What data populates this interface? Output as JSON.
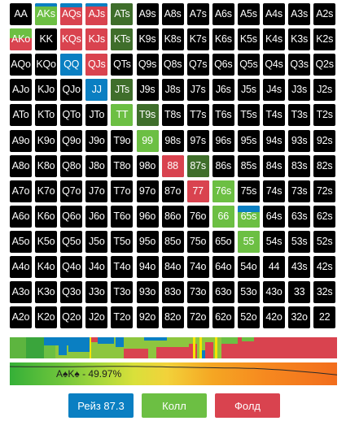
{
  "colors": {
    "raise": "#0a7fc2",
    "call": "#6cbf43",
    "call_dark": "#3f6e2b",
    "fold": "#d9434f",
    "empty": "#000000"
  },
  "grid": {
    "rows": [
      [
        {
          "l": "AA",
          "f": []
        },
        {
          "l": "AKs",
          "f": [
            [
              "raise",
              0.15
            ],
            [
              "call",
              0.85
            ]
          ]
        },
        {
          "l": "AQs",
          "f": [
            [
              "raise",
              0.18
            ],
            [
              "fold",
              0.82
            ]
          ]
        },
        {
          "l": "AJs",
          "f": [
            [
              "raise",
              0.15
            ],
            [
              "fold",
              0.85
            ]
          ]
        },
        {
          "l": "ATs",
          "f": [
            [
              "call_dark",
              1
            ]
          ]
        },
        {
          "l": "A9s",
          "f": []
        },
        {
          "l": "A8s",
          "f": []
        },
        {
          "l": "A7s",
          "f": []
        },
        {
          "l": "A6s",
          "f": []
        },
        {
          "l": "A5s",
          "f": []
        },
        {
          "l": "A4s",
          "f": []
        },
        {
          "l": "A3s",
          "f": []
        },
        {
          "l": "A2s",
          "f": []
        }
      ],
      [
        {
          "l": "AKo",
          "f": [
            [
              "call",
              0.45
            ],
            [
              "fold",
              0.55
            ]
          ]
        },
        {
          "l": "KK",
          "f": []
        },
        {
          "l": "KQs",
          "f": [
            [
              "fold",
              1
            ]
          ]
        },
        {
          "l": "KJs",
          "f": [
            [
              "fold",
              1
            ]
          ]
        },
        {
          "l": "KTs",
          "f": [
            [
              "call_dark",
              1
            ]
          ]
        },
        {
          "l": "K9s",
          "f": []
        },
        {
          "l": "K8s",
          "f": []
        },
        {
          "l": "K7s",
          "f": []
        },
        {
          "l": "K6s",
          "f": []
        },
        {
          "l": "K5s",
          "f": []
        },
        {
          "l": "K4s",
          "f": []
        },
        {
          "l": "K3s",
          "f": []
        },
        {
          "l": "K2s",
          "f": []
        }
      ],
      [
        {
          "l": "AQo",
          "f": []
        },
        {
          "l": "KQo",
          "f": []
        },
        {
          "l": "QQ",
          "f": [
            [
              "raise",
              1
            ]
          ]
        },
        {
          "l": "QJs",
          "f": [
            [
              "fold",
              1
            ]
          ]
        },
        {
          "l": "QTs",
          "f": []
        },
        {
          "l": "Q9s",
          "f": []
        },
        {
          "l": "Q8s",
          "f": []
        },
        {
          "l": "Q7s",
          "f": []
        },
        {
          "l": "Q6s",
          "f": []
        },
        {
          "l": "Q5s",
          "f": []
        },
        {
          "l": "Q4s",
          "f": []
        },
        {
          "l": "Q3s",
          "f": []
        },
        {
          "l": "Q2s",
          "f": []
        }
      ],
      [
        {
          "l": "AJo",
          "f": []
        },
        {
          "l": "KJo",
          "f": []
        },
        {
          "l": "QJo",
          "f": []
        },
        {
          "l": "JJ",
          "f": [
            [
              "raise",
              1
            ]
          ]
        },
        {
          "l": "JTs",
          "f": [
            [
              "call_dark",
              1
            ]
          ]
        },
        {
          "l": "J9s",
          "f": []
        },
        {
          "l": "J8s",
          "f": []
        },
        {
          "l": "J7s",
          "f": []
        },
        {
          "l": "J6s",
          "f": []
        },
        {
          "l": "J5s",
          "f": []
        },
        {
          "l": "J4s",
          "f": []
        },
        {
          "l": "J3s",
          "f": []
        },
        {
          "l": "J2s",
          "f": []
        }
      ],
      [
        {
          "l": "ATo",
          "f": []
        },
        {
          "l": "KTo",
          "f": []
        },
        {
          "l": "QTo",
          "f": []
        },
        {
          "l": "JTo",
          "f": []
        },
        {
          "l": "TT",
          "f": [
            [
              "call",
              1
            ]
          ]
        },
        {
          "l": "T9s",
          "f": [
            [
              "call_dark",
              1
            ]
          ]
        },
        {
          "l": "T8s",
          "f": []
        },
        {
          "l": "T7s",
          "f": []
        },
        {
          "l": "T6s",
          "f": []
        },
        {
          "l": "T5s",
          "f": []
        },
        {
          "l": "T4s",
          "f": []
        },
        {
          "l": "T3s",
          "f": []
        },
        {
          "l": "T2s",
          "f": []
        }
      ],
      [
        {
          "l": "A9o",
          "f": []
        },
        {
          "l": "K9o",
          "f": []
        },
        {
          "l": "Q9o",
          "f": []
        },
        {
          "l": "J9o",
          "f": []
        },
        {
          "l": "T9o",
          "f": []
        },
        {
          "l": "99",
          "f": [
            [
              "call",
              1
            ]
          ]
        },
        {
          "l": "98s",
          "f": []
        },
        {
          "l": "97s",
          "f": []
        },
        {
          "l": "96s",
          "f": []
        },
        {
          "l": "95s",
          "f": []
        },
        {
          "l": "94s",
          "f": []
        },
        {
          "l": "93s",
          "f": []
        },
        {
          "l": "92s",
          "f": []
        }
      ],
      [
        {
          "l": "A8o",
          "f": []
        },
        {
          "l": "K8o",
          "f": []
        },
        {
          "l": "Q8o",
          "f": []
        },
        {
          "l": "J8o",
          "f": []
        },
        {
          "l": "T8o",
          "f": []
        },
        {
          "l": "98o",
          "f": []
        },
        {
          "l": "88",
          "f": [
            [
              "fold",
              1
            ]
          ]
        },
        {
          "l": "87s",
          "f": [
            [
              "call_dark",
              1
            ]
          ]
        },
        {
          "l": "86s",
          "f": []
        },
        {
          "l": "85s",
          "f": []
        },
        {
          "l": "84s",
          "f": []
        },
        {
          "l": "83s",
          "f": []
        },
        {
          "l": "82s",
          "f": []
        }
      ],
      [
        {
          "l": "A7o",
          "f": []
        },
        {
          "l": "K7o",
          "f": []
        },
        {
          "l": "Q7o",
          "f": []
        },
        {
          "l": "J7o",
          "f": []
        },
        {
          "l": "T7o",
          "f": []
        },
        {
          "l": "97o",
          "f": []
        },
        {
          "l": "87o",
          "f": []
        },
        {
          "l": "77",
          "f": [
            [
              "fold",
              1
            ]
          ]
        },
        {
          "l": "76s",
          "f": [
            [
              "call",
              1
            ]
          ]
        },
        {
          "l": "75s",
          "f": []
        },
        {
          "l": "74s",
          "f": []
        },
        {
          "l": "73s",
          "f": []
        },
        {
          "l": "72s",
          "f": []
        }
      ],
      [
        {
          "l": "A6o",
          "f": []
        },
        {
          "l": "K6o",
          "f": []
        },
        {
          "l": "Q6o",
          "f": []
        },
        {
          "l": "J6o",
          "f": []
        },
        {
          "l": "T6o",
          "f": []
        },
        {
          "l": "96o",
          "f": []
        },
        {
          "l": "86o",
          "f": []
        },
        {
          "l": "76o",
          "f": []
        },
        {
          "l": "66",
          "f": [
            [
              "call",
              1
            ]
          ]
        },
        {
          "l": "65s",
          "f": [
            [
              "raise",
              0.3
            ],
            [
              "call",
              0.7
            ]
          ]
        },
        {
          "l": "64s",
          "f": []
        },
        {
          "l": "63s",
          "f": []
        },
        {
          "l": "62s",
          "f": []
        }
      ],
      [
        {
          "l": "A5o",
          "f": []
        },
        {
          "l": "K5o",
          "f": []
        },
        {
          "l": "Q5o",
          "f": []
        },
        {
          "l": "J5o",
          "f": []
        },
        {
          "l": "T5o",
          "f": []
        },
        {
          "l": "95o",
          "f": []
        },
        {
          "l": "85o",
          "f": []
        },
        {
          "l": "75o",
          "f": []
        },
        {
          "l": "65o",
          "f": []
        },
        {
          "l": "55",
          "f": [
            [
              "call",
              1
            ]
          ]
        },
        {
          "l": "54s",
          "f": []
        },
        {
          "l": "53s",
          "f": []
        },
        {
          "l": "52s",
          "f": []
        }
      ],
      [
        {
          "l": "A4o",
          "f": []
        },
        {
          "l": "K4o",
          "f": []
        },
        {
          "l": "Q4o",
          "f": []
        },
        {
          "l": "J4o",
          "f": []
        },
        {
          "l": "T4o",
          "f": []
        },
        {
          "l": "94o",
          "f": []
        },
        {
          "l": "84o",
          "f": []
        },
        {
          "l": "74o",
          "f": []
        },
        {
          "l": "64o",
          "f": []
        },
        {
          "l": "54o",
          "f": []
        },
        {
          "l": "44",
          "f": []
        },
        {
          "l": "43s",
          "f": []
        },
        {
          "l": "42s",
          "f": []
        }
      ],
      [
        {
          "l": "A3o",
          "f": []
        },
        {
          "l": "K3o",
          "f": []
        },
        {
          "l": "Q3o",
          "f": []
        },
        {
          "l": "J3o",
          "f": []
        },
        {
          "l": "T3o",
          "f": []
        },
        {
          "l": "93o",
          "f": []
        },
        {
          "l": "83o",
          "f": []
        },
        {
          "l": "73o",
          "f": []
        },
        {
          "l": "63o",
          "f": []
        },
        {
          "l": "53o",
          "f": []
        },
        {
          "l": "43o",
          "f": []
        },
        {
          "l": "33",
          "f": []
        },
        {
          "l": "32s",
          "f": []
        }
      ],
      [
        {
          "l": "A2o",
          "f": []
        },
        {
          "l": "K2o",
          "f": []
        },
        {
          "l": "Q2o",
          "f": []
        },
        {
          "l": "J2o",
          "f": []
        },
        {
          "l": "T2o",
          "f": []
        },
        {
          "l": "92o",
          "f": []
        },
        {
          "l": "82o",
          "f": []
        },
        {
          "l": "72o",
          "f": []
        },
        {
          "l": "62o",
          "f": []
        },
        {
          "l": "52o",
          "f": []
        },
        {
          "l": "42o",
          "f": []
        },
        {
          "l": "32o",
          "f": []
        },
        {
          "l": "22",
          "f": []
        }
      ]
    ]
  },
  "equity": {
    "label": "A♠K♠ - 49.97%"
  },
  "buttons": {
    "raise": "Рейз 87.3",
    "call": "Колл",
    "fold": "Фолд"
  }
}
